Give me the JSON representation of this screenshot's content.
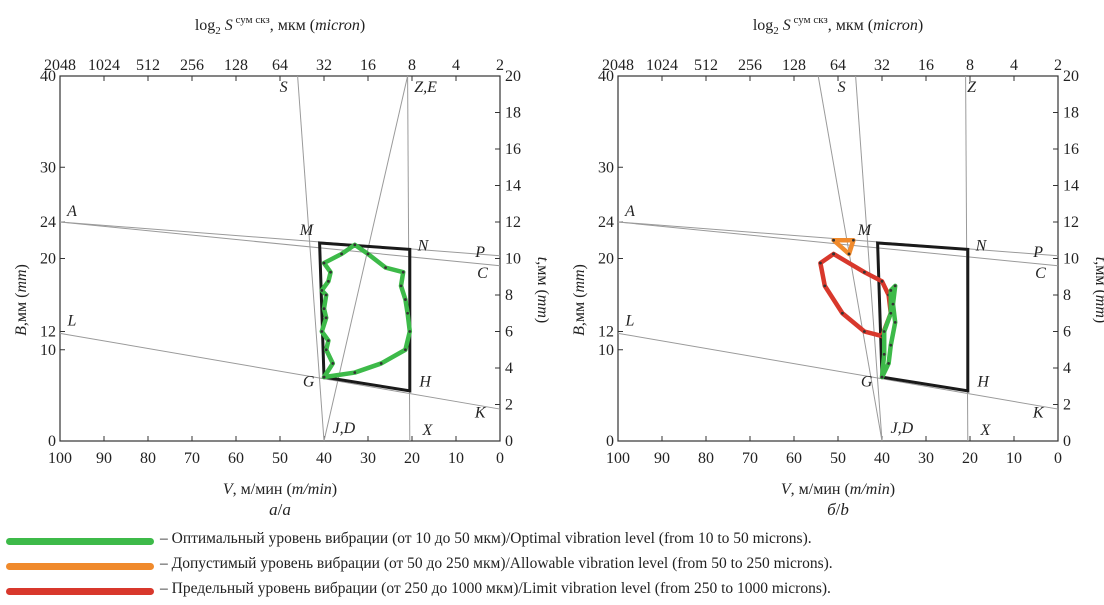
{
  "chart_data": [
    {
      "type": "line",
      "panel_label": "а/a",
      "top_axis": {
        "label_base": "log",
        "label_sub": "2",
        "label_var": " S",
        "label_sup": "сум скз",
        "label_unit": ", мкм (",
        "label_unit_it": "micron",
        "label_close": ")",
        "ticks": [
          "2048",
          "1024",
          "512",
          "256",
          "128",
          "64",
          "32",
          "16",
          "8",
          "4",
          "2"
        ]
      },
      "x_axis": {
        "label_var": "V",
        "label_unit": ", м/мин (",
        "label_unit_it": "m/min",
        "label_close": ")",
        "ticks": [
          100,
          90,
          80,
          70,
          60,
          50,
          40,
          30,
          20,
          10,
          0
        ],
        "range": [
          100,
          0
        ]
      },
      "y_left": {
        "label_var": "B",
        "label_unit": ",мм (",
        "label_unit_it": "mm",
        "label_close": ")",
        "ticks": [
          0,
          10,
          12,
          20,
          24,
          30,
          40
        ],
        "range": [
          0,
          40
        ]
      },
      "y_right": {
        "label_var": "t",
        "label_unit": ",мм (",
        "label_unit_it": "mm",
        "label_close": ")",
        "ticks": [
          0,
          2,
          4,
          6,
          8,
          10,
          12,
          14,
          16,
          18,
          20
        ],
        "range": [
          0,
          20
        ]
      },
      "point_labels": [
        "A",
        "L",
        "M",
        "N",
        "P",
        "C",
        "G",
        "H",
        "K",
        "S",
        "Z,E",
        "J,D",
        "X"
      ],
      "region_MNHG": {
        "M": [
          41,
          21.7
        ],
        "N": [
          20.5,
          21
        ],
        "H": [
          20.5,
          5.5
        ],
        "G": [
          40,
          7
        ]
      },
      "series": [
        {
          "level": "optimal",
          "color": "#3dba49",
          "points": [
            [
              40,
              7
            ],
            [
              38,
              8.5
            ],
            [
              39.5,
              10
            ],
            [
              39,
              11
            ],
            [
              40.5,
              12
            ],
            [
              39.5,
              13.5
            ],
            [
              40,
              14.5
            ],
            [
              39.5,
              16
            ],
            [
              40.5,
              16.5
            ],
            [
              39,
              17.5
            ],
            [
              38.5,
              18.5
            ],
            [
              40,
              19.5
            ],
            [
              36,
              20.5
            ],
            [
              33,
              21.5
            ],
            [
              30,
              20.5
            ],
            [
              26,
              19
            ],
            [
              22,
              18.5
            ],
            [
              22.5,
              17
            ],
            [
              21.5,
              15.5
            ],
            [
              21,
              14
            ],
            [
              20.5,
              12
            ],
            [
              21.5,
              10
            ],
            [
              27,
              8.5
            ],
            [
              33,
              7.5
            ],
            [
              40,
              7
            ]
          ]
        }
      ]
    },
    {
      "type": "line",
      "panel_label": "б/b",
      "top_axis": {
        "label_base": "log",
        "label_sub": "2",
        "label_var": " S",
        "label_sup": "сум скз",
        "label_unit": ", мкм (",
        "label_unit_it": "micron",
        "label_close": ")",
        "ticks": [
          "2048",
          "1024",
          "512",
          "256",
          "128",
          "64",
          "32",
          "16",
          "8",
          "4",
          "2"
        ]
      },
      "x_axis": {
        "label_var": "V",
        "label_unit": ", м/мин (",
        "label_unit_it": "m/min",
        "label_close": ")",
        "ticks": [
          100,
          90,
          80,
          70,
          60,
          50,
          40,
          30,
          20,
          10,
          0
        ],
        "range": [
          100,
          0
        ]
      },
      "y_left": {
        "label_var": "B",
        "label_unit": ",мм (",
        "label_unit_it": "mm",
        "label_close": ")",
        "ticks": [
          0,
          10,
          12,
          20,
          24,
          30,
          40
        ],
        "range": [
          0,
          40
        ]
      },
      "y_right": {
        "label_var": "t",
        "label_unit": ",мм (",
        "label_unit_it": "mm",
        "label_close": ")",
        "ticks": [
          0,
          2,
          4,
          6,
          8,
          10,
          12,
          14,
          16,
          18,
          20
        ],
        "range": [
          0,
          20
        ]
      },
      "point_labels": [
        "A",
        "L",
        "M",
        "N",
        "P",
        "C",
        "G",
        "H",
        "K",
        "S",
        "Z",
        "J,D",
        "X"
      ],
      "region_MNHG": {
        "M": [
          41,
          21.7
        ],
        "N": [
          20.5,
          21
        ],
        "H": [
          20.5,
          5.5
        ],
        "G": [
          40,
          7
        ]
      },
      "series": [
        {
          "level": "allowable",
          "color": "#f08a2c",
          "points": [
            [
              51,
              22
            ],
            [
              46.5,
              22
            ],
            [
              47.5,
              20.5
            ],
            [
              51,
              22
            ]
          ]
        },
        {
          "level": "limit",
          "color": "#d8382c",
          "points": [
            [
              51,
              20.5
            ],
            [
              54,
              19.5
            ],
            [
              53,
              17
            ],
            [
              49,
              14
            ],
            [
              44,
              12
            ],
            [
              40,
              11.5
            ],
            [
              38,
              14
            ],
            [
              38.5,
              16
            ],
            [
              40,
              17.5
            ],
            [
              44,
              18.5
            ],
            [
              51,
              20.5
            ]
          ]
        },
        {
          "level": "optimal",
          "color": "#3dba49",
          "points": [
            [
              40,
              7
            ],
            [
              39.5,
              9.5
            ],
            [
              39.5,
              12
            ],
            [
              38,
              14
            ],
            [
              38,
              16.5
            ],
            [
              37,
              17
            ],
            [
              37.5,
              15
            ],
            [
              37,
              13
            ],
            [
              38,
              10.5
            ],
            [
              38.5,
              8.5
            ],
            [
              40,
              7
            ]
          ]
        }
      ]
    }
  ],
  "legend": [
    {
      "level": "optimal",
      "color": "#3dba49",
      "text": "– Оптимальный уровень вибрации (от 10 до 50 мкм)/Optimal vibration level (from 10 to 50 microns)."
    },
    {
      "level": "allowable",
      "color": "#f08a2c",
      "text": "– Допустимый уровень вибрации (от 50 до 250 мкм)/Allowable vibration level (from 50 to 250 microns)."
    },
    {
      "level": "limit",
      "color": "#d8382c",
      "text": "– Предельный уровень вибрации (от 250 до 1000 мкм)/Limit vibration level (from 250 to 1000 microns)."
    }
  ]
}
